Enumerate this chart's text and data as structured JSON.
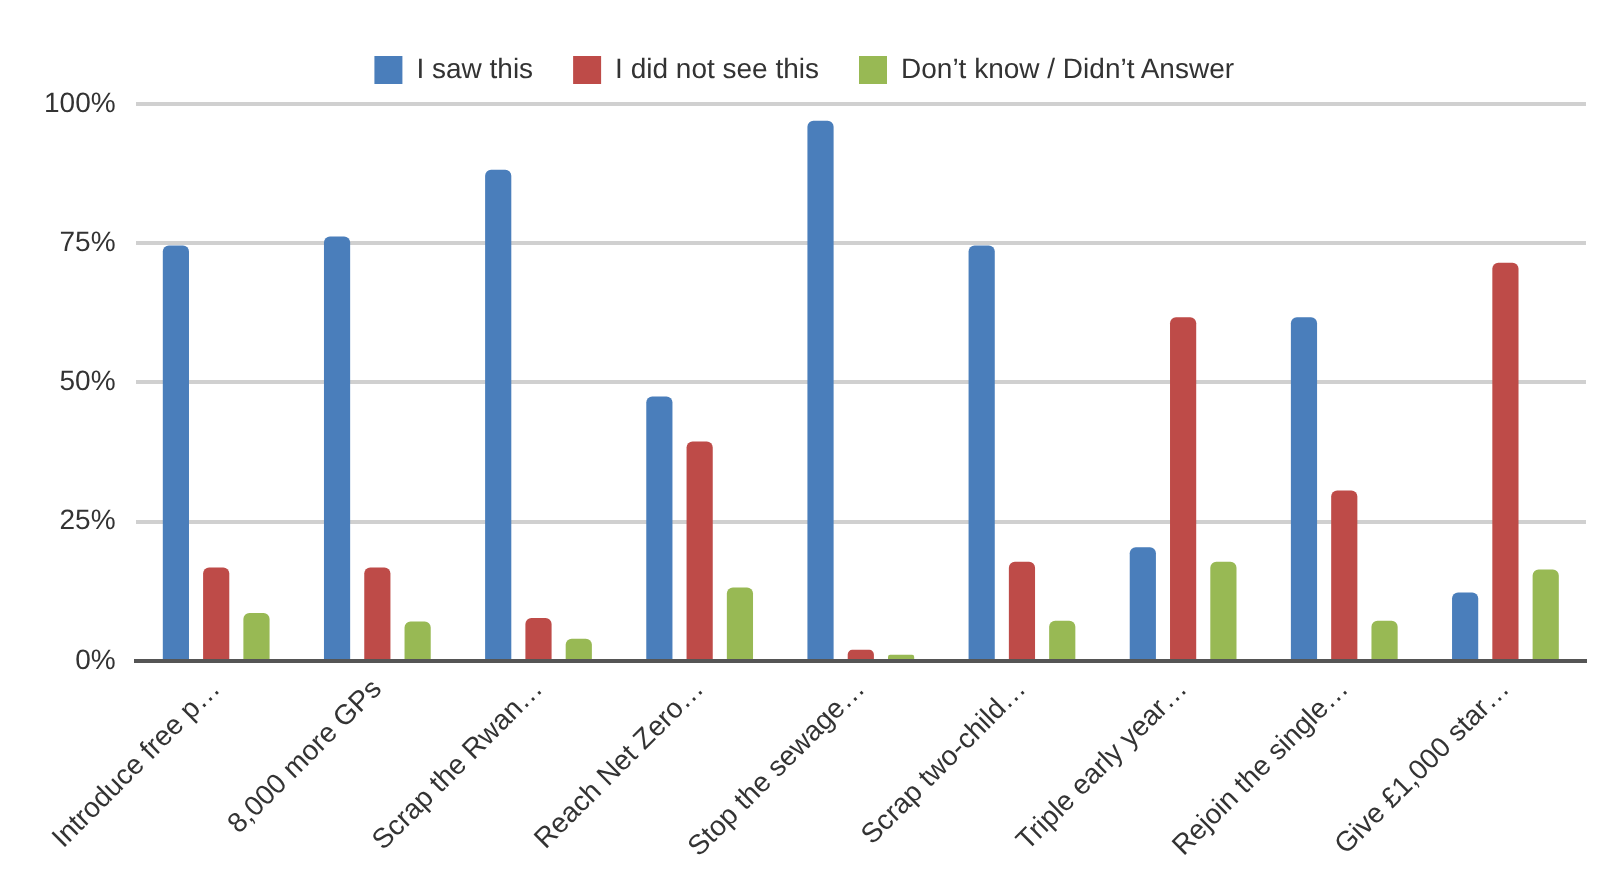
{
  "chart_data": {
    "type": "bar",
    "categories": [
      "Introduce free p…",
      "8,000 more GPs",
      "Scrap the Rwan…",
      "Reach Net Zero…",
      "Stop the sewage…",
      "Scrap two-child…",
      "Triple early year…",
      "Rejoin the single…",
      "Give £1,000 star…"
    ],
    "series": [
      {
        "name": "I saw this",
        "color": "#4a7ebb",
        "values": [
          74.6,
          76.2,
          88.2,
          47.5,
          97.0,
          74.6,
          20.4,
          61.7,
          12.3
        ]
      },
      {
        "name": "I did not see this",
        "color": "#be4b48",
        "values": [
          16.8,
          16.8,
          7.7,
          39.4,
          2.0,
          17.8,
          61.7,
          30.6,
          71.5
        ]
      },
      {
        "name": "Don’t know / Didn’t Answer",
        "color": "#98b954",
        "values": [
          8.6,
          7.1,
          4.0,
          13.2,
          1.1,
          7.2,
          17.8,
          7.2,
          16.4
        ]
      }
    ],
    "ylim": [
      0,
      100
    ],
    "yticks": [
      {
        "value": 0,
        "label": "0%"
      },
      {
        "value": 25,
        "label": "25%"
      },
      {
        "value": 50,
        "label": "50%"
      },
      {
        "value": 75,
        "label": "75%"
      },
      {
        "value": 100,
        "label": "100%"
      }
    ],
    "grid": "y",
    "legend": "top"
  }
}
